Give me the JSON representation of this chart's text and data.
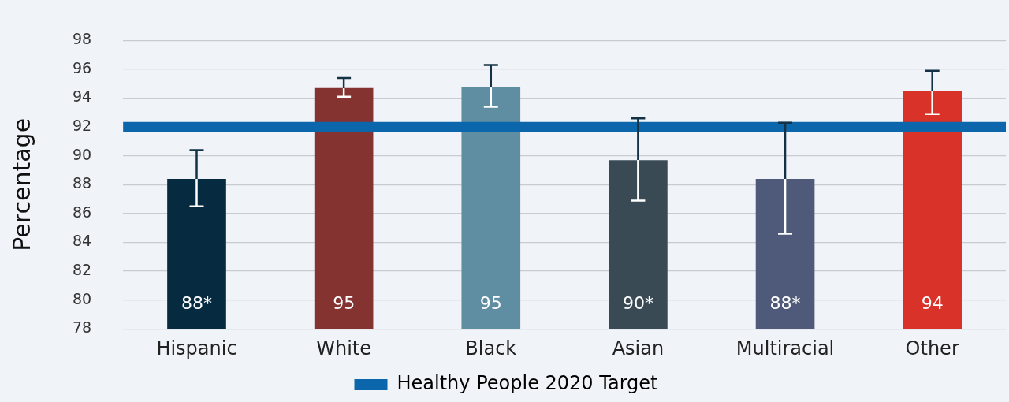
{
  "chart_data": {
    "type": "bar",
    "ylabel": "Percentage",
    "categories": [
      "Hispanic",
      "White",
      "Black",
      "Asian",
      "Multiracial",
      "Other"
    ],
    "values": [
      88.4,
      94.7,
      94.8,
      89.7,
      88.4,
      94.5
    ],
    "colors": [
      "#062a40",
      "#843331",
      "#5f8ea3",
      "#3a4a54",
      "#4f5a7a",
      "#d93228"
    ],
    "value_labels": [
      "88*",
      "95",
      "95",
      "90*",
      "88*",
      "94"
    ],
    "errors": [
      [
        86.5,
        90.4
      ],
      [
        94.1,
        95.4
      ],
      [
        93.4,
        96.3
      ],
      [
        86.9,
        92.6
      ],
      [
        84.6,
        92.3
      ],
      [
        92.9,
        95.9
      ]
    ],
    "ylim": [
      78,
      98
    ],
    "yticks": [
      78,
      80,
      82,
      84,
      86,
      88,
      90,
      92,
      94,
      96,
      98
    ],
    "grid": "y",
    "legend": "bottom",
    "ref_lines": [
      {
        "axis": "y",
        "value": 92,
        "label": "Healthy People 2020 Target",
        "color": "#0b66ab"
      }
    ]
  }
}
